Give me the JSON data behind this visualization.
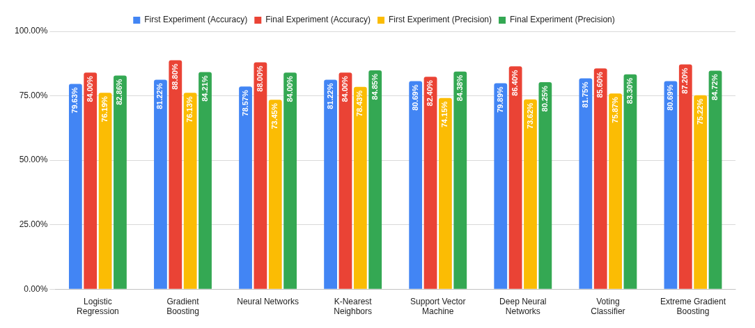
{
  "chart_data": {
    "type": "bar",
    "categories": [
      "Logistic Regression",
      "Gradient Boosting",
      "Neural Networks",
      "K-Nearest Neighbors",
      "Support Vector Machine",
      "Deep Neural Networks",
      "Voting Classifier",
      "Extreme Gradient Boosting"
    ],
    "series": [
      {
        "name": "First Experiment (Accuracy)",
        "color": "#4285f4",
        "values": [
          79.63,
          81.22,
          78.57,
          81.22,
          80.69,
          79.89,
          81.75,
          80.69
        ],
        "value_labels": [
          "79.63%",
          "81.22%",
          "78.57%",
          "81.22%",
          "80.69%",
          "79.89%",
          "81.75%",
          "80.69%"
        ]
      },
      {
        "name": "Final Experiment (Accuracy)",
        "color": "#ea4335",
        "values": [
          84.0,
          88.8,
          88.0,
          84.0,
          82.4,
          86.4,
          85.6,
          87.2
        ],
        "value_labels": [
          "84.00%",
          "88.80%",
          "88.00%",
          "84.00%",
          "82.40%",
          "86.40%",
          "85.60%",
          "87.20%"
        ]
      },
      {
        "name": "First Experiment (Precision)",
        "color": "#fbbc04",
        "values": [
          76.19,
          76.13,
          73.45,
          78.43,
          74.15,
          73.62,
          75.87,
          75.22
        ],
        "value_labels": [
          "76.19%",
          "76.13%",
          "73.45%",
          "78.43%",
          "74.15%",
          "73.62%",
          "75.87%",
          "75.22%"
        ]
      },
      {
        "name": "Final Experiment (Precision)",
        "color": "#34a853",
        "values": [
          82.86,
          84.21,
          84.0,
          84.85,
          84.38,
          80.25,
          83.3,
          84.72
        ],
        "value_labels": [
          "82.86%",
          "84.21%",
          "84.00%",
          "84.85%",
          "84.38%",
          "80.25%",
          "83.30%",
          "84.72%"
        ]
      }
    ],
    "ylim": [
      0,
      100
    ],
    "yticks": [
      {
        "value": 0,
        "label": "0.00%"
      },
      {
        "value": 25,
        "label": "25.00%"
      },
      {
        "value": 50,
        "label": "50.00%"
      },
      {
        "value": 75,
        "label": "75.00%"
      },
      {
        "value": 100,
        "label": "100.00%"
      }
    ],
    "grid": "y",
    "legend": "top"
  }
}
